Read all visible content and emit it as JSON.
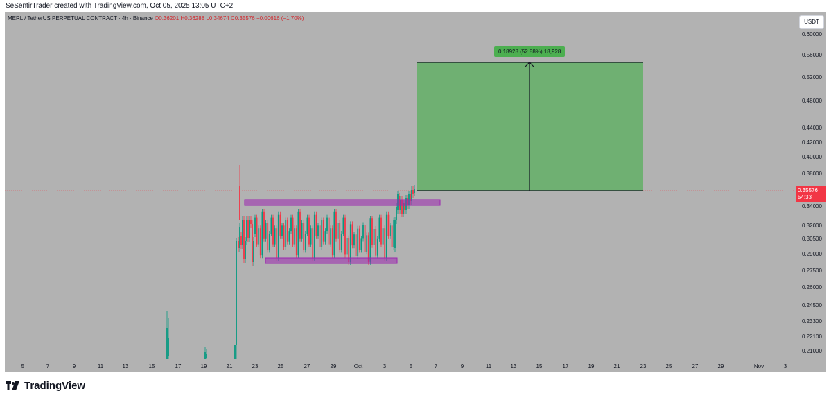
{
  "header": {
    "credit": "SeSentirTrader created with TradingView.com, Oct 05, 2025 13:05 UTC+2"
  },
  "legend": {
    "symbol": "MERL / TetherUS PERPETUAL CONTRACT · 4h · Binance",
    "open": "O0.36201",
    "high": "H0.36288",
    "low": "L0.34674",
    "close": "C0.35576",
    "change": "−0.00616 (−1.70%)"
  },
  "price_axis": {
    "currency_button": "USDT",
    "ticks": [
      "0.60000",
      "0.56000",
      "0.52000",
      "0.48000",
      "0.44000",
      "0.42000",
      "0.40000",
      "0.38000",
      "0.34000",
      "0.32000",
      "0.30500",
      "0.29000",
      "0.27500",
      "0.26000",
      "0.24500",
      "0.23300",
      "0.22100",
      "0.21000"
    ],
    "last_price": "0.35576",
    "countdown": "54:33"
  },
  "time_axis": {
    "ticks": [
      "5",
      "7",
      "9",
      "11",
      "13",
      "15",
      "17",
      "19",
      "21",
      "23",
      "25",
      "27",
      "29",
      "Oct",
      "3",
      "5",
      "7",
      "9",
      "11",
      "13",
      "15",
      "17",
      "19",
      "21",
      "23",
      "25",
      "27",
      "29",
      "Nov",
      "3"
    ]
  },
  "measure_tool": {
    "label": "0.18928 (52.88%) 18,928"
  },
  "footer": {
    "brand": "TradingView"
  },
  "colors": {
    "up": "#089981",
    "down": "#f23645",
    "zone": "#9c27b0",
    "target": "#4caf50",
    "background": "#b2b2b2"
  }
}
